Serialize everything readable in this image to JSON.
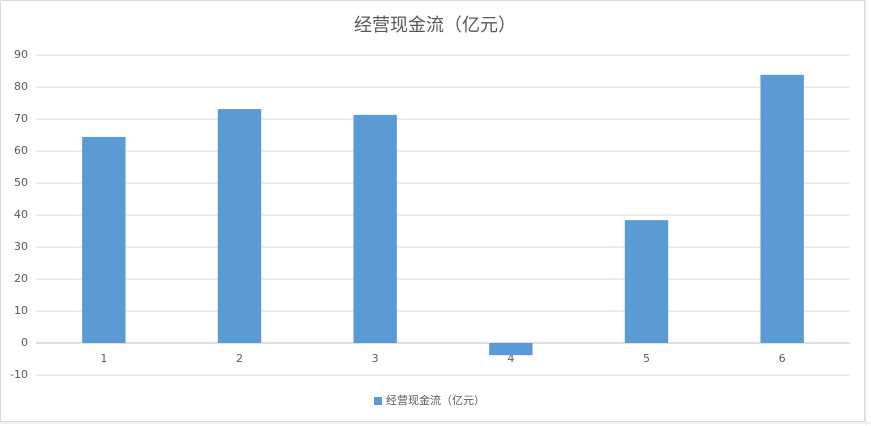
{
  "chart_data": {
    "type": "bar",
    "title": "经营现金流（亿元）",
    "categories": [
      "1",
      "2",
      "3",
      "4",
      "5",
      "6"
    ],
    "series": [
      {
        "name": "经营现金流（亿元）",
        "color": "#5b9bd5",
        "values": [
          64.4,
          73.1,
          71.3,
          -3.8,
          38.4,
          83.8
        ]
      }
    ],
    "ylim": [
      -10,
      90
    ],
    "yticks": [
      -10,
      0,
      10,
      20,
      30,
      40,
      50,
      60,
      70,
      80,
      90
    ],
    "grid": true,
    "legend": "bottom"
  }
}
